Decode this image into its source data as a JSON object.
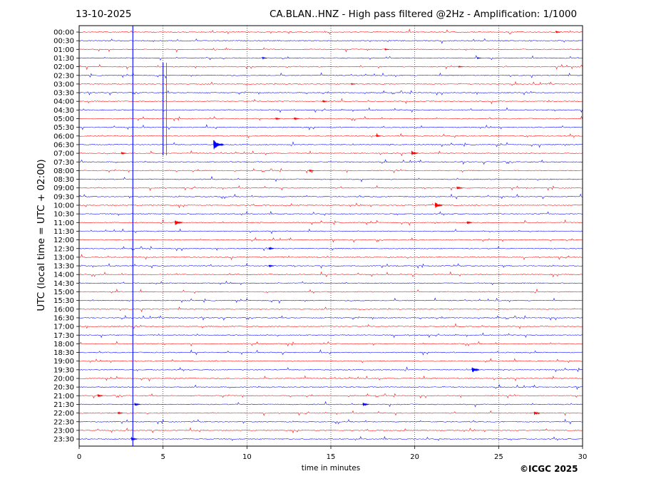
{
  "header": {
    "date": "13-10-2025",
    "title": "CA.BLAN..HNZ - High pass filtered @2Hz - Amplification: 1/1000"
  },
  "footer": {
    "copyright": "©ICGC 2025"
  },
  "chart_data": {
    "type": "line",
    "title": "CA.BLAN..HNZ - High pass filtered @2Hz - Amplification: 1/1000",
    "xlabel": "time in minutes",
    "ylabel": "UTC (local time = UTC + 02:00)",
    "xlim": [
      0,
      30
    ],
    "x_ticks": [
      0,
      5,
      10,
      15,
      20,
      25,
      30
    ],
    "grid": "vertical dotted lines at x ticks",
    "y_tick_labels": [
      "00:00",
      "00:30",
      "01:00",
      "01:30",
      "02:00",
      "02:30",
      "03:00",
      "03:30",
      "04:00",
      "04:30",
      "05:00",
      "05:30",
      "06:00",
      "06:30",
      "07:00",
      "07:30",
      "08:00",
      "08:30",
      "09:00",
      "09:30",
      "10:00",
      "10:30",
      "11:00",
      "11:30",
      "12:00",
      "12:30",
      "13:00",
      "13:30",
      "14:00",
      "14:30",
      "15:00",
      "15:30",
      "16:00",
      "16:30",
      "17:00",
      "17:30",
      "18:00",
      "18:30",
      "19:00",
      "19:30",
      "20:00",
      "20:30",
      "21:00",
      "21:30",
      "22:00",
      "22:30",
      "23:00",
      "23:30"
    ],
    "trace_colors": [
      "#ff0000",
      "#0000ff"
    ],
    "events": [
      {
        "trace": "00:00",
        "minute": 28.5,
        "amplitude": 0.5
      },
      {
        "trace": "01:00",
        "minute": 18.3,
        "amplitude": 0.4
      },
      {
        "trace": "01:30",
        "minute": 11.0,
        "amplitude": 0.5
      },
      {
        "trace": "01:30",
        "minute": 23.8,
        "amplitude": 0.4
      },
      {
        "trace": "02:00",
        "minute": 22.7,
        "amplitude": 0.4
      },
      {
        "trace": "03:00",
        "minute": 16.3,
        "amplitude": 0.4
      },
      {
        "trace": "04:00",
        "minute": 14.6,
        "amplitude": 0.6
      },
      {
        "trace": "05:00",
        "minute": 11.8,
        "amplitude": 0.6
      },
      {
        "trace": "05:00",
        "minute": 12.9,
        "amplitude": 0.7
      },
      {
        "trace": "06:00",
        "minute": 17.8,
        "amplitude": 0.6
      },
      {
        "trace": "06:30",
        "minute": 8.1,
        "amplitude": 2.5
      },
      {
        "trace": "07:00",
        "minute": 2.6,
        "amplitude": 0.7
      },
      {
        "trace": "07:00",
        "minute": 19.9,
        "amplitude": 1.2
      },
      {
        "trace": "08:00",
        "minute": 13.8,
        "amplitude": 0.6
      },
      {
        "trace": "09:00",
        "minute": 22.6,
        "amplitude": 0.9
      },
      {
        "trace": "10:00",
        "minute": 21.3,
        "amplitude": 1.6
      },
      {
        "trace": "11:00",
        "minute": 5.8,
        "amplitude": 1.5
      },
      {
        "trace": "11:00",
        "minute": 23.2,
        "amplitude": 0.8
      },
      {
        "trace": "12:30",
        "minute": 11.4,
        "amplitude": 0.7
      },
      {
        "trace": "13:30",
        "minute": 11.4,
        "amplitude": 0.7
      },
      {
        "trace": "19:30",
        "minute": 23.5,
        "amplitude": 1.6
      },
      {
        "trace": "21:00",
        "minute": 1.2,
        "amplitude": 0.8
      },
      {
        "trace": "21:30",
        "minute": 17.0,
        "amplitude": 1.0
      },
      {
        "trace": "21:30",
        "minute": 3.4,
        "amplitude": 0.9
      },
      {
        "trace": "22:00",
        "minute": 2.4,
        "amplitude": 0.7
      },
      {
        "trace": "22:00",
        "minute": 27.2,
        "amplitude": 1.0
      },
      {
        "trace": "23:30",
        "minute": 3.2,
        "amplitude": 1.0
      }
    ]
  }
}
